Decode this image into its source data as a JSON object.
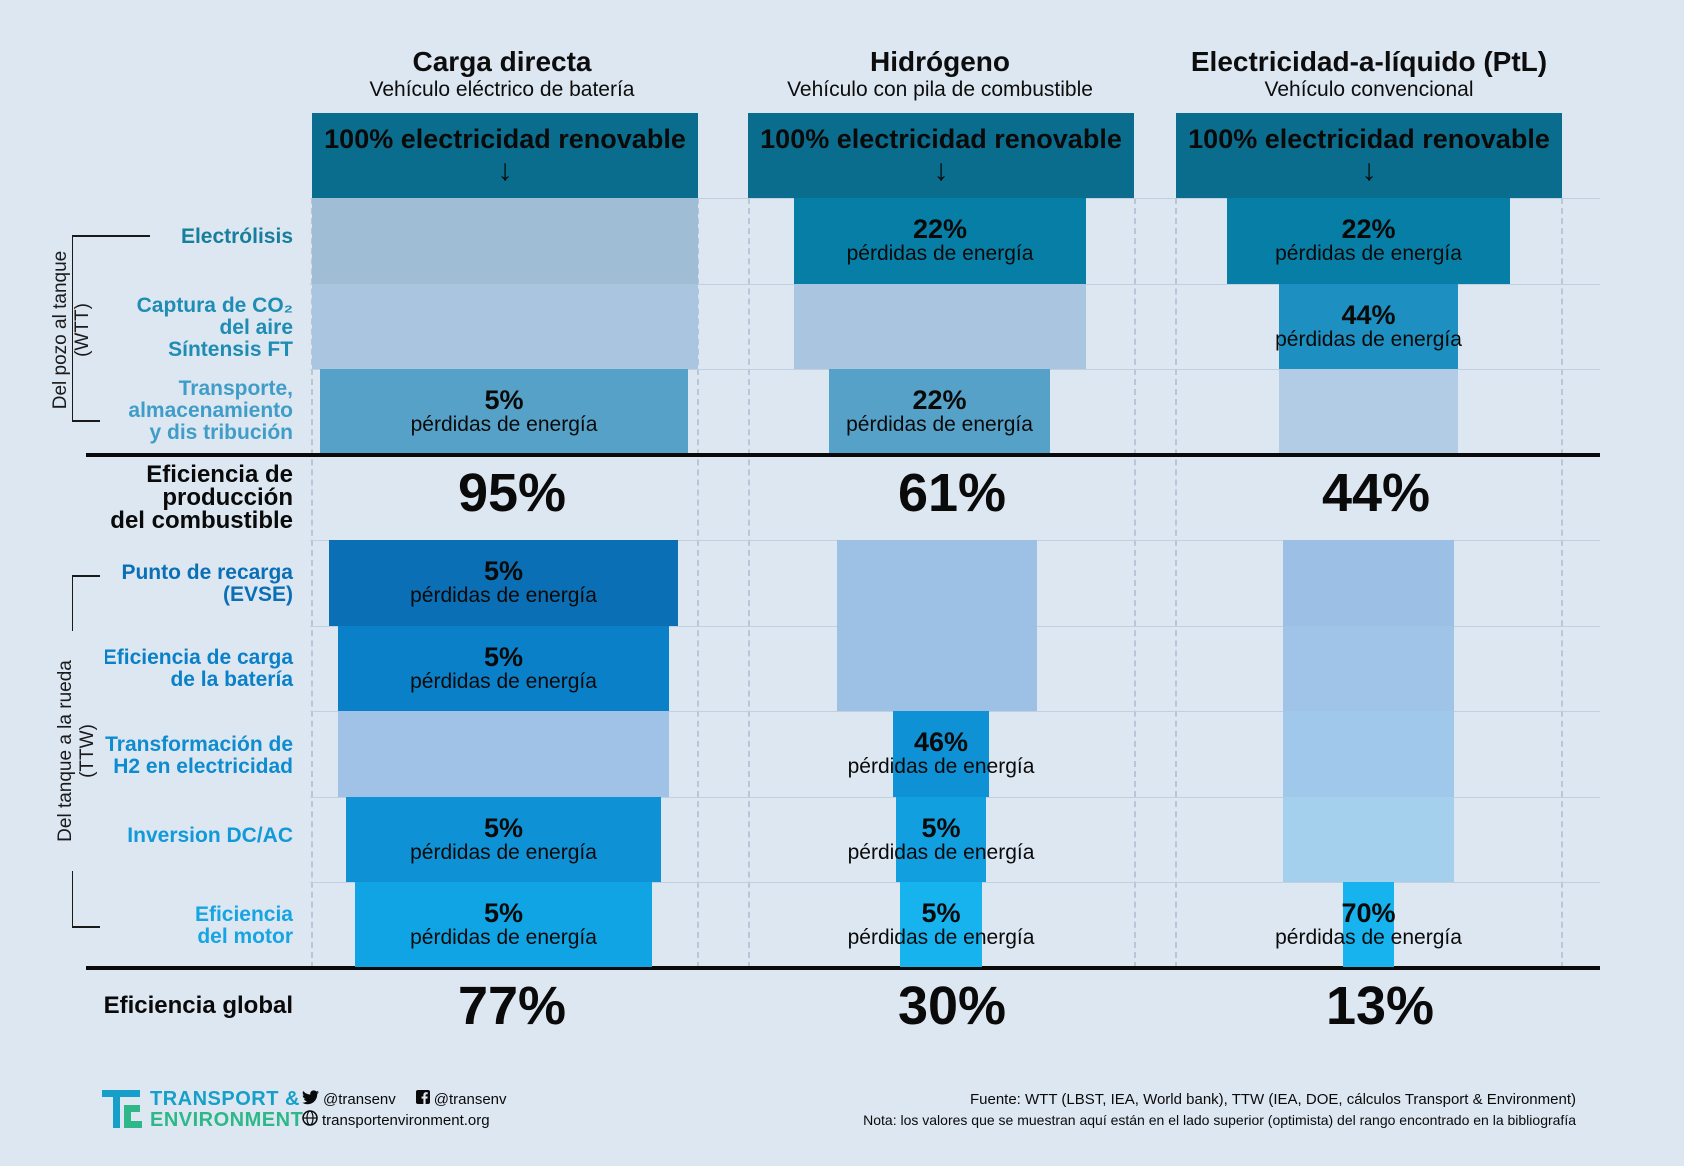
{
  "columns": [
    {
      "title": "Carga directa",
      "subtitle": "Vehículo eléctrico de batería",
      "top_label": "100% electricidad renovable",
      "fuel_efficiency": "95%",
      "overall_efficiency": "77%"
    },
    {
      "title": "Hidrógeno",
      "subtitle": "Vehículo con pila de combustible",
      "top_label": "100% electricidad renovable",
      "fuel_efficiency": "61%",
      "overall_efficiency": "30%"
    },
    {
      "title": "Electricidad-a-líquido (PtL)",
      "subtitle": "Vehículo convencional",
      "top_label": "100% electricidad renovable",
      "fuel_efficiency": "44%",
      "overall_efficiency": "13%"
    }
  ],
  "arrow_glyph": "↓",
  "loss_text": "pérdidas de energía",
  "rows": {
    "electrolisis": "Electrólisis",
    "captura_1": "Captura de CO₂",
    "captura_2": "del aire",
    "captura_3": "Síntensis FT",
    "transporte_1": "Transporte,",
    "transporte_2": "almacenamiento",
    "transporte_3": "y dis tribución",
    "eficiencia_prod_1": "Eficiencia de",
    "eficiencia_prod_2": "producción",
    "eficiencia_prod_3": "del combustible",
    "punto_1": "Punto de recarga",
    "punto_2": "(EVSE)",
    "carga_1": "Eficiencia de carga",
    "carga_2": "de la batería",
    "transf_1": "Transformación de",
    "transf_2": "H2 en electricidad",
    "inversion": "Inversion DC/AC",
    "motor_1": "Eficiencia",
    "motor_2": "del motor",
    "global": "Eficiencia global"
  },
  "groups": {
    "wtt_1": "Del pozo al tanque",
    "wtt_2": "(WTT)",
    "ttw_1": "Del tanque a la rueda",
    "ttw_2": "(TTW)"
  },
  "losses": {
    "bev_transport": "5%",
    "h2_electrolysis": "22%",
    "h2_transport": "22%",
    "ptl_electrolysis": "22%",
    "ptl_capture": "44%",
    "bev_evse": "5%",
    "bev_charging": "5%",
    "bev_inversion": "5%",
    "bev_motor": "5%",
    "h2_transformation": "46%",
    "h2_inversion": "5%",
    "h2_motor": "5%",
    "ptl_motor": "70%"
  },
  "footer": {
    "logo_line1": "TRANSPORT &",
    "logo_line2": "ENVIRONMENT",
    "twitter": "@transenv",
    "facebook": "@transenv",
    "website": "transportenvironment.org",
    "source": "Fuente: WTT (LBST, IEA, World bank), TTW (IEA, DOE, cálculos Transport & Environment)",
    "note": "Nota: los valores que se muestran aquí están en el lado superior (optimista) del rango encontrado en la bibliografía"
  },
  "colors": {
    "background": "#dde7f2",
    "top_box": "#0a6d8d",
    "label_teal": "#177f9c",
    "label_blue": "#1590c8"
  }
}
